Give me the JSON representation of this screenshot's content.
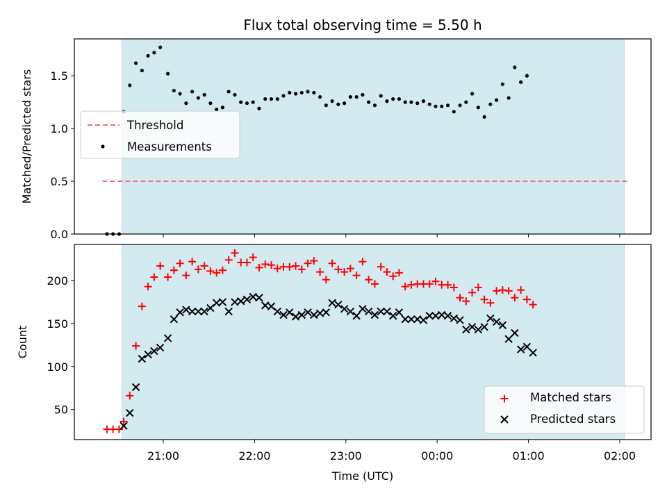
{
  "chart_data": [
    {
      "type": "scatter",
      "title": "Flux total observing time = 5.50 h",
      "xlabel": "",
      "ylabel": "Matched/Predicted stars",
      "ylim": [
        0,
        1.85
      ],
      "yticks": [
        "0.0",
        "0.5",
        "1.0",
        "1.5"
      ],
      "observing_window": [
        "20:33",
        "02:03"
      ],
      "threshold": {
        "name": "Threshold",
        "value": 0.5,
        "x_range": [
          "20:20",
          "02:05"
        ],
        "color": "#f07070"
      },
      "legend": {
        "placement": "center-left",
        "entries": [
          "Threshold",
          "Measurements"
        ]
      },
      "series": [
        {
          "name": "Measurements",
          "color": "#000000",
          "points": [
            [
              "20:23",
              0.0
            ],
            [
              "20:27",
              0.0
            ],
            [
              "20:31",
              0.0
            ],
            [
              "20:34",
              1.16
            ],
            [
              "20:38",
              1.41
            ],
            [
              "20:42",
              1.62
            ],
            [
              "20:46",
              1.55
            ],
            [
              "20:50",
              1.69
            ],
            [
              "20:54",
              1.72
            ],
            [
              "20:58",
              1.77
            ],
            [
              "21:03",
              1.52
            ],
            [
              "21:07",
              1.36
            ],
            [
              "21:11",
              1.33
            ],
            [
              "21:15",
              1.24
            ],
            [
              "21:19",
              1.35
            ],
            [
              "21:23",
              1.29
            ],
            [
              "21:27",
              1.32
            ],
            [
              "21:31",
              1.24
            ],
            [
              "21:35",
              1.18
            ],
            [
              "21:39",
              1.2
            ],
            [
              "21:43",
              1.35
            ],
            [
              "21:47",
              1.32
            ],
            [
              "21:51",
              1.25
            ],
            [
              "21:55",
              1.24
            ],
            [
              "21:59",
              1.25
            ],
            [
              "22:03",
              1.19
            ],
            [
              "22:07",
              1.28
            ],
            [
              "22:11",
              1.28
            ],
            [
              "22:15",
              1.28
            ],
            [
              "22:19",
              1.31
            ],
            [
              "22:23",
              1.34
            ],
            [
              "22:27",
              1.33
            ],
            [
              "22:31",
              1.34
            ],
            [
              "22:35",
              1.35
            ],
            [
              "22:39",
              1.34
            ],
            [
              "22:43",
              1.3
            ],
            [
              "22:47",
              1.22
            ],
            [
              "22:51",
              1.26
            ],
            [
              "22:55",
              1.23
            ],
            [
              "22:59",
              1.24
            ],
            [
              "23:03",
              1.3
            ],
            [
              "23:07",
              1.3
            ],
            [
              "23:11",
              1.32
            ],
            [
              "23:15",
              1.25
            ],
            [
              "23:19",
              1.22
            ],
            [
              "23:23",
              1.31
            ],
            [
              "23:27",
              1.26
            ],
            [
              "23:31",
              1.28
            ],
            [
              "23:35",
              1.28
            ],
            [
              "23:39",
              1.25
            ],
            [
              "23:43",
              1.25
            ],
            [
              "23:47",
              1.24
            ],
            [
              "23:51",
              1.26
            ],
            [
              "23:55",
              1.23
            ],
            [
              "23:59",
              1.21
            ],
            [
              "00:03",
              1.21
            ],
            [
              "00:07",
              1.22
            ],
            [
              "00:11",
              1.16
            ],
            [
              "00:15",
              1.22
            ],
            [
              "00:19",
              1.25
            ],
            [
              "00:23",
              1.33
            ],
            [
              "00:27",
              1.2
            ],
            [
              "00:31",
              1.11
            ],
            [
              "00:35",
              1.23
            ],
            [
              "00:39",
              1.27
            ],
            [
              "00:43",
              1.42
            ],
            [
              "00:47",
              1.29
            ],
            [
              "00:51",
              1.58
            ],
            [
              "00:55",
              1.44
            ],
            [
              "00:59",
              1.5
            ]
          ]
        }
      ]
    },
    {
      "type": "scatter",
      "title": "",
      "xlabel": "Time (UTC)",
      "ylabel": "Count",
      "ylim": [
        15,
        242
      ],
      "yticks": [
        "50",
        "100",
        "150",
        "200"
      ],
      "xticks": [
        "21:00",
        "22:00",
        "23:00",
        "00:00",
        "01:00",
        "02:00"
      ],
      "observing_window": [
        "20:33",
        "02:03"
      ],
      "legend": {
        "placement": "lower-right",
        "entries": [
          "Matched stars",
          "Predicted stars"
        ]
      },
      "series": [
        {
          "name": "Matched stars",
          "marker": "plus",
          "color": "#ff0000",
          "points": [
            [
              "20:23",
              27
            ],
            [
              "20:27",
              27
            ],
            [
              "20:31",
              27
            ],
            [
              "20:34",
              36
            ],
            [
              "20:38",
              66
            ],
            [
              "20:42",
              124
            ],
            [
              "20:46",
              170
            ],
            [
              "20:50",
              193
            ],
            [
              "20:54",
              204
            ],
            [
              "20:58",
              217
            ],
            [
              "21:03",
              204
            ],
            [
              "21:07",
              212
            ],
            [
              "21:11",
              220
            ],
            [
              "21:15",
              206
            ],
            [
              "21:19",
              222
            ],
            [
              "21:23",
              213
            ],
            [
              "21:27",
              217
            ],
            [
              "21:31",
              211
            ],
            [
              "21:35",
              209
            ],
            [
              "21:39",
              212
            ],
            [
              "21:43",
              224
            ],
            [
              "21:47",
              232
            ],
            [
              "21:51",
              221
            ],
            [
              "21:55",
              221
            ],
            [
              "21:59",
              227
            ],
            [
              "22:03",
              215
            ],
            [
              "22:07",
              219
            ],
            [
              "22:11",
              218
            ],
            [
              "22:15",
              214
            ],
            [
              "22:19",
              216
            ],
            [
              "22:23",
              216
            ],
            [
              "22:27",
              217
            ],
            [
              "22:31",
              213
            ],
            [
              "22:35",
              220
            ],
            [
              "22:39",
              223
            ],
            [
              "22:43",
              210
            ],
            [
              "22:47",
              201
            ],
            [
              "22:51",
              220
            ],
            [
              "22:55",
              213
            ],
            [
              "22:59",
              210
            ],
            [
              "23:03",
              214
            ],
            [
              "23:07",
              206
            ],
            [
              "23:11",
              222
            ],
            [
              "23:15",
              201
            ],
            [
              "23:19",
              196
            ],
            [
              "23:23",
              216
            ],
            [
              "23:27",
              210
            ],
            [
              "23:31",
              205
            ],
            [
              "23:35",
              209
            ],
            [
              "23:39",
              193
            ],
            [
              "23:43",
              195
            ],
            [
              "23:47",
              196
            ],
            [
              "23:51",
              196
            ],
            [
              "23:55",
              196
            ],
            [
              "23:59",
              199
            ],
            [
              "00:03",
              195
            ],
            [
              "00:07",
              195
            ],
            [
              "00:11",
              192
            ],
            [
              "00:15",
              180
            ],
            [
              "00:19",
              176
            ],
            [
              "00:23",
              186
            ],
            [
              "00:27",
              192
            ],
            [
              "00:31",
              178
            ],
            [
              "00:35",
              174
            ],
            [
              "00:39",
              188
            ],
            [
              "00:43",
              189
            ],
            [
              "00:47",
              188
            ],
            [
              "00:51",
              180
            ],
            [
              "00:55",
              189
            ],
            [
              "00:59",
              178
            ],
            [
              "01:03",
              172
            ]
          ]
        },
        {
          "name": "Predicted stars",
          "marker": "x",
          "color": "#000000",
          "points": [
            [
              "20:34",
              31
            ],
            [
              "20:38",
              46
            ],
            [
              "20:42",
              76
            ],
            [
              "20:46",
              109
            ],
            [
              "20:50",
              114
            ],
            [
              "20:54",
              118
            ],
            [
              "20:58",
              122
            ],
            [
              "21:03",
              133
            ],
            [
              "21:07",
              155
            ],
            [
              "21:11",
              163
            ],
            [
              "21:15",
              166
            ],
            [
              "21:19",
              164
            ],
            [
              "21:23",
              164
            ],
            [
              "21:27",
              164
            ],
            [
              "21:31",
              168
            ],
            [
              "21:35",
              174
            ],
            [
              "21:39",
              175
            ],
            [
              "21:43",
              164
            ],
            [
              "21:47",
              175
            ],
            [
              "21:51",
              176
            ],
            [
              "21:55",
              178
            ],
            [
              "21:59",
              181
            ],
            [
              "22:03",
              180
            ],
            [
              "22:07",
              171
            ],
            [
              "22:11",
              170
            ],
            [
              "22:15",
              164
            ],
            [
              "22:19",
              160
            ],
            [
              "22:23",
              163
            ],
            [
              "22:27",
              158
            ],
            [
              "22:31",
              160
            ],
            [
              "22:35",
              163
            ],
            [
              "22:39",
              160
            ],
            [
              "22:43",
              162
            ],
            [
              "22:47",
              163
            ],
            [
              "22:51",
              174
            ],
            [
              "22:55",
              172
            ],
            [
              "22:59",
              167
            ],
            [
              "23:03",
              164
            ],
            [
              "23:07",
              159
            ],
            [
              "23:11",
              167
            ],
            [
              "23:15",
              164
            ],
            [
              "23:19",
              160
            ],
            [
              "23:23",
              164
            ],
            [
              "23:27",
              164
            ],
            [
              "23:31",
              159
            ],
            [
              "23:35",
              163
            ],
            [
              "23:39",
              155
            ],
            [
              "23:43",
              155
            ],
            [
              "23:47",
              155
            ],
            [
              "23:51",
              154
            ],
            [
              "23:55",
              159
            ],
            [
              "23:59",
              159
            ],
            [
              "00:03",
              160
            ],
            [
              "00:07",
              159
            ],
            [
              "00:11",
              156
            ],
            [
              "00:15",
              154
            ],
            [
              "00:19",
              143
            ],
            [
              "00:23",
              146
            ],
            [
              "00:27",
              143
            ],
            [
              "00:31",
              146
            ],
            [
              "00:35",
              156
            ],
            [
              "00:39",
              152
            ],
            [
              "00:43",
              148
            ],
            [
              "00:47",
              132
            ],
            [
              "00:51",
              139
            ],
            [
              "00:55",
              120
            ],
            [
              "00:59",
              123
            ],
            [
              "01:03",
              116
            ]
          ]
        }
      ]
    }
  ],
  "colors": {
    "window_fill": "#d4eaf1",
    "window_edge": "#b7d8e4"
  }
}
